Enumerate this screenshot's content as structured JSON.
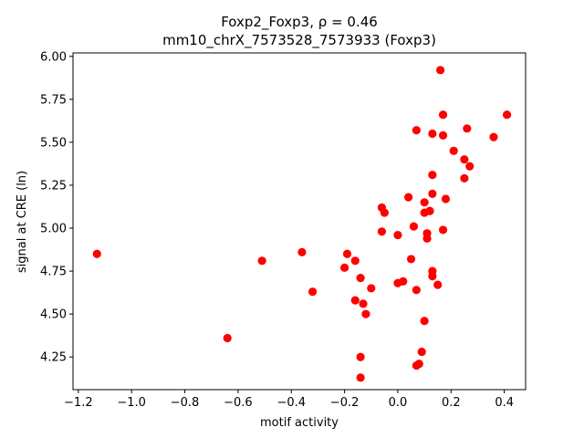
{
  "chart_data": {
    "type": "scatter",
    "title_line1": "Foxp2_Foxp3, ρ = 0.46",
    "title_line2": "mm10_chrX_7573528_7573933 (Foxp3)",
    "xlabel": "motif activity",
    "ylabel": "signal at CRE (ln)",
    "xlim": [
      -1.22,
      0.48
    ],
    "ylim": [
      4.06,
      6.02
    ],
    "xticks": [
      -1.2,
      -1.0,
      -0.8,
      -0.6,
      -0.4,
      -0.2,
      0.0,
      0.2,
      0.4
    ],
    "xtick_labels": [
      "−1.2",
      "−1.0",
      "−0.8",
      "−0.6",
      "−0.4",
      "−0.2",
      "0.0",
      "0.2",
      "0.4"
    ],
    "yticks": [
      4.25,
      4.5,
      4.75,
      5.0,
      5.25,
      5.5,
      5.75,
      6.0
    ],
    "ytick_labels": [
      "4.25",
      "4.50",
      "4.75",
      "5.00",
      "5.25",
      "5.50",
      "5.75",
      "6.00"
    ],
    "marker_color": "#ff0000",
    "grid": false,
    "points": [
      {
        "x": -1.13,
        "y": 4.85
      },
      {
        "x": -0.64,
        "y": 4.36
      },
      {
        "x": -0.51,
        "y": 4.81
      },
      {
        "x": -0.36,
        "y": 4.86
      },
      {
        "x": -0.32,
        "y": 4.63
      },
      {
        "x": -0.2,
        "y": 4.77
      },
      {
        "x": -0.19,
        "y": 4.85
      },
      {
        "x": -0.16,
        "y": 4.81
      },
      {
        "x": -0.16,
        "y": 4.58
      },
      {
        "x": -0.14,
        "y": 4.71
      },
      {
        "x": -0.13,
        "y": 4.56
      },
      {
        "x": -0.12,
        "y": 4.5
      },
      {
        "x": -0.1,
        "y": 4.65
      },
      {
        "x": -0.14,
        "y": 4.25
      },
      {
        "x": -0.14,
        "y": 4.13
      },
      {
        "x": -0.06,
        "y": 4.98
      },
      {
        "x": -0.05,
        "y": 5.09
      },
      {
        "x": -0.06,
        "y": 5.12
      },
      {
        "x": 0.0,
        "y": 4.96
      },
      {
        "x": 0.0,
        "y": 4.68
      },
      {
        "x": 0.02,
        "y": 4.69
      },
      {
        "x": 0.04,
        "y": 5.18
      },
      {
        "x": 0.06,
        "y": 5.01
      },
      {
        "x": 0.05,
        "y": 4.82
      },
      {
        "x": 0.07,
        "y": 4.64
      },
      {
        "x": 0.07,
        "y": 5.57
      },
      {
        "x": 0.07,
        "y": 4.2
      },
      {
        "x": 0.08,
        "y": 4.21
      },
      {
        "x": 0.09,
        "y": 4.28
      },
      {
        "x": 0.1,
        "y": 4.46
      },
      {
        "x": 0.1,
        "y": 5.15
      },
      {
        "x": 0.1,
        "y": 5.09
      },
      {
        "x": 0.11,
        "y": 4.97
      },
      {
        "x": 0.11,
        "y": 4.94
      },
      {
        "x": 0.12,
        "y": 5.1
      },
      {
        "x": 0.12,
        "y": 5.1
      },
      {
        "x": 0.13,
        "y": 4.75
      },
      {
        "x": 0.13,
        "y": 4.72
      },
      {
        "x": 0.13,
        "y": 5.2
      },
      {
        "x": 0.13,
        "y": 5.31
      },
      {
        "x": 0.13,
        "y": 5.55
      },
      {
        "x": 0.15,
        "y": 4.67
      },
      {
        "x": 0.16,
        "y": 5.92
      },
      {
        "x": 0.17,
        "y": 5.66
      },
      {
        "x": 0.17,
        "y": 5.54
      },
      {
        "x": 0.17,
        "y": 4.99
      },
      {
        "x": 0.18,
        "y": 5.17
      },
      {
        "x": 0.21,
        "y": 5.45
      },
      {
        "x": 0.25,
        "y": 5.29
      },
      {
        "x": 0.25,
        "y": 5.4
      },
      {
        "x": 0.26,
        "y": 5.58
      },
      {
        "x": 0.27,
        "y": 5.36
      },
      {
        "x": 0.36,
        "y": 5.53
      },
      {
        "x": 0.41,
        "y": 5.66
      }
    ]
  }
}
